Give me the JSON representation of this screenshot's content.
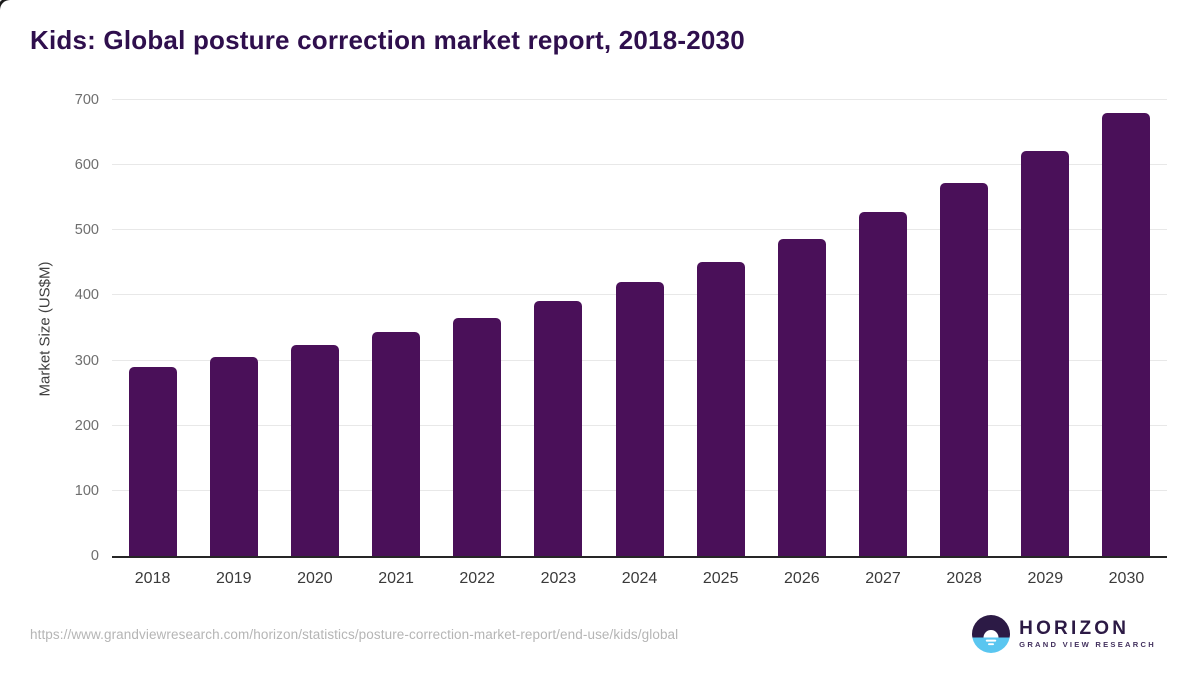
{
  "page": {
    "title": "Kids: Global posture correction market report, 2018-2030"
  },
  "chart_data": {
    "type": "bar",
    "title": "Kids: Global posture correction market report, 2018-2030",
    "categories": [
      "2018",
      "2019",
      "2020",
      "2021",
      "2022",
      "2023",
      "2024",
      "2025",
      "2026",
      "2027",
      "2028",
      "2029",
      "2030"
    ],
    "values": [
      290,
      305,
      324,
      344,
      366,
      391,
      420,
      452,
      487,
      528,
      572,
      622,
      680
    ],
    "xlabel": "",
    "ylabel": "Market Size (US$M)",
    "ylim": [
      0,
      700
    ],
    "yticks": [
      0,
      100,
      200,
      300,
      400,
      500,
      600,
      700
    ],
    "grid": "horizontal",
    "legend": "none",
    "bar_color": "#4a1059"
  },
  "footer": {
    "source_url": "https://www.grandviewresearch.com/horizon/statistics/posture-correction-market-report/end-use/kids/global",
    "logo": {
      "name": "HORIZON",
      "subtext": "GRAND VIEW RESEARCH"
    }
  },
  "colors": {
    "bar": "#4a1059",
    "title": "#2f0f4d",
    "axis_line": "#262626",
    "gridline": "#e8e8e8",
    "y_tick_label": "#6e6e6e",
    "x_tick_label": "#3a3a3a",
    "url_text": "#b5b5b5",
    "logo_purple": "#2c1a45",
    "logo_blue": "#5ac6f0"
  }
}
